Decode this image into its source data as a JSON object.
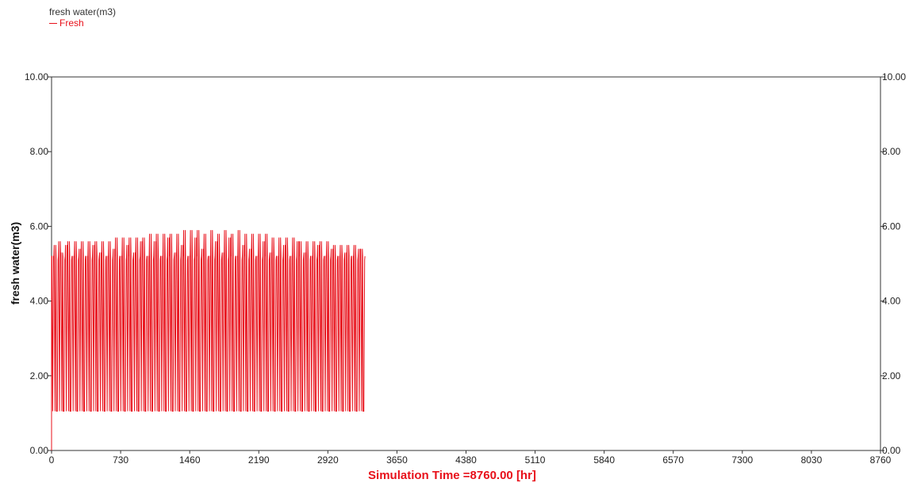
{
  "chart_data": {
    "type": "line",
    "title": "fresh water(m3)",
    "xlabel": "Simulation Time =8760.00 [hr]",
    "ylabel": "fresh water(m3)",
    "xlim": [
      0,
      8760
    ],
    "ylim": [
      0,
      10
    ],
    "x_ticks": [
      "0",
      "730",
      "1460",
      "2190",
      "2920",
      "3650",
      "4380",
      "5110",
      "5840",
      "6570",
      "7300",
      "8030",
      "8760"
    ],
    "y_ticks": [
      "0.00",
      "2.00",
      "4.00",
      "6.00",
      "8.00",
      "10.00"
    ],
    "grid": false,
    "legend_position": "top-left",
    "series": [
      {
        "name": "Fresh",
        "color": "#e8101a",
        "pattern": "rapid oscillation between low and high levels, sampled every 24 hr",
        "x_step": 24,
        "baseline": 5.2,
        "values": [
          5.2,
          5.5,
          1.05,
          5.6,
          5.3,
          1.05,
          5.5,
          5.6,
          1.05,
          5.2,
          5.6,
          1.05,
          5.4,
          5.6,
          1.05,
          5.2,
          5.6,
          1.05,
          5.5,
          5.6,
          1.05,
          5.3,
          5.6,
          1.05,
          5.2,
          5.6,
          1.05,
          5.4,
          5.7,
          1.05,
          5.2,
          5.7,
          1.05,
          5.5,
          5.7,
          1.05,
          5.3,
          5.7,
          1.05,
          5.6,
          5.7,
          1.05,
          5.2,
          5.8,
          1.05,
          5.6,
          5.8,
          1.05,
          5.2,
          5.8,
          1.05,
          5.7,
          5.8,
          1.05,
          5.3,
          5.8,
          1.05,
          5.5,
          5.9,
          1.05,
          5.2,
          5.9,
          1.05,
          5.7,
          5.9,
          1.05,
          5.4,
          5.8,
          1.05,
          5.2,
          5.9,
          1.05,
          5.6,
          5.8,
          1.05,
          5.3,
          5.9,
          1.05,
          5.7,
          5.8,
          1.05,
          5.2,
          5.9,
          1.05,
          5.5,
          5.8,
          1.05,
          5.4,
          5.8,
          1.05,
          5.2,
          5.8,
          1.05,
          5.6,
          5.8,
          1.05,
          5.3,
          5.7,
          1.05,
          5.2,
          5.7,
          1.05,
          5.5,
          5.7,
          1.05,
          5.2,
          5.7,
          1.05,
          5.6,
          5.6,
          1.05,
          5.3,
          5.6,
          1.05,
          5.2,
          5.6,
          1.05,
          5.5,
          5.6,
          1.05,
          5.2,
          5.6,
          1.05,
          5.4,
          5.5,
          1.05,
          5.2,
          5.5,
          1.05,
          5.3,
          5.5,
          1.05,
          5.2,
          5.5,
          1.05,
          5.4,
          5.4,
          1.05
        ]
      }
    ]
  },
  "legend": {
    "title": "fresh water(m3)",
    "entry": "Fresh"
  }
}
